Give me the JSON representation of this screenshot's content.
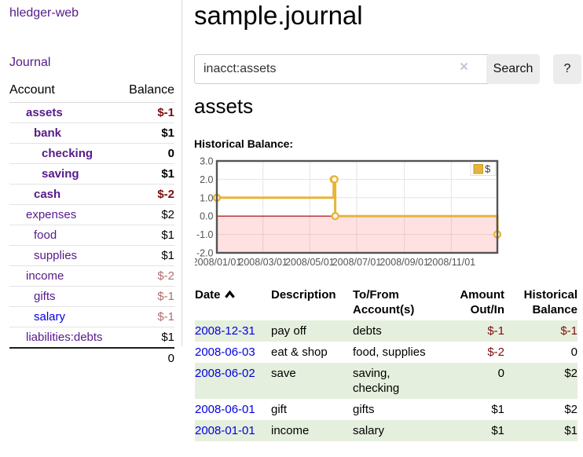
{
  "app_title": "hledger-web",
  "sidebar": {
    "journal_link": "Journal",
    "accounts_table": {
      "headers": {
        "account": "Account",
        "balance": "Balance"
      },
      "rows": [
        {
          "name": "assets",
          "indent": 1,
          "bold": true,
          "balance": "$-1",
          "balance_style": "negative"
        },
        {
          "name": "bank",
          "indent": 2,
          "bold": true,
          "balance": "$1",
          "balance_style": "positive"
        },
        {
          "name": "checking",
          "indent": 3,
          "bold": true,
          "balance": "0",
          "balance_style": "positive"
        },
        {
          "name": "saving",
          "indent": 3,
          "bold": true,
          "balance": "$1",
          "balance_style": "positive"
        },
        {
          "name": "cash",
          "indent": 2,
          "bold": true,
          "balance": "$-2",
          "balance_style": "negative"
        },
        {
          "name": "expenses",
          "indent": 1,
          "bold": false,
          "balance": "$2",
          "balance_style": "positive"
        },
        {
          "name": "food",
          "indent": 2,
          "bold": false,
          "balance": "$1",
          "balance_style": "positive"
        },
        {
          "name": "supplies",
          "indent": 2,
          "bold": false,
          "balance": "$1",
          "balance_style": "positive"
        },
        {
          "name": "income",
          "indent": 1,
          "bold": false,
          "balance": "$-2",
          "balance_style": "negative-dim"
        },
        {
          "name": "gifts",
          "indent": 2,
          "bold": false,
          "balance": "$-1",
          "balance_style": "negative-dim"
        },
        {
          "name": "salary",
          "indent": 2,
          "bold": false,
          "balance": "$-1",
          "balance_style": "negative-dim",
          "link_style": "unvisited"
        },
        {
          "name": "liabilities:debts",
          "indent": 1,
          "bold": false,
          "balance": "$1",
          "balance_style": "positive"
        }
      ],
      "total": "0"
    }
  },
  "main": {
    "title": "sample.journal",
    "search": {
      "value": "inacct:assets",
      "clear_label": "×",
      "search_button": "Search",
      "help_button": "?"
    },
    "account_heading": "assets",
    "section_label": "Historical Balance:"
  },
  "chart_data": {
    "type": "line",
    "style": "steps",
    "title": "Historical Balance:",
    "series": [
      {
        "name": "$",
        "color": "#e8b43a",
        "points": [
          [
            "2008-01-01",
            1
          ],
          [
            "2008-06-01",
            2
          ],
          [
            "2008-06-02",
            2
          ],
          [
            "2008-06-03",
            0
          ],
          [
            "2008-12-31",
            -1
          ]
        ]
      }
    ],
    "xlim": [
      "2008-01-01",
      "2008-12-31"
    ],
    "ylim": [
      -2,
      3
    ],
    "y_ticks": [
      {
        "value": 3,
        "label": "3.0"
      },
      {
        "value": 2,
        "label": "2.0"
      },
      {
        "value": 1,
        "label": "1.0"
      },
      {
        "value": 0,
        "label": "0.0"
      },
      {
        "value": -1,
        "label": "-1.0"
      },
      {
        "value": -2,
        "label": "-2.0"
      }
    ],
    "x_ticks": [
      {
        "date": "2008-01-01",
        "label": "2008/01/01"
      },
      {
        "date": "2008-03-01",
        "label": "2008/03/01"
      },
      {
        "date": "2008-05-01",
        "label": "2008/05/01"
      },
      {
        "date": "2008-07-01",
        "label": "2008/07/01"
      },
      {
        "date": "2008-09-01",
        "label": "2008/09/01"
      },
      {
        "date": "2008-11-01",
        "label": "2008/11/01"
      }
    ],
    "legend": {
      "label": "$",
      "position": "top-right"
    },
    "grid": true,
    "negative_region_shaded": true
  },
  "register": {
    "headers": {
      "date": "Date",
      "description": "Description",
      "accounts": "To/From Account(s)",
      "amount": "Amount Out/In",
      "balance": "Historical Balance"
    },
    "sort": "date-ascending",
    "rows": [
      {
        "date": "2008-12-31",
        "description": "pay off",
        "accounts": "debts",
        "amount": "$-1",
        "amount_negative": true,
        "balance": "$-1",
        "balance_negative": true
      },
      {
        "date": "2008-06-03",
        "description": "eat & shop",
        "accounts": "food, supplies",
        "amount": "$-2",
        "amount_negative": true,
        "balance": "0",
        "balance_negative": false
      },
      {
        "date": "2008-06-02",
        "description": "save",
        "accounts": "saving, checking",
        "amount": "0",
        "amount_negative": false,
        "balance": "$2",
        "balance_negative": false
      },
      {
        "date": "2008-06-01",
        "description": "gift",
        "accounts": "gifts",
        "amount": "$1",
        "amount_negative": false,
        "balance": "$2",
        "balance_negative": false
      },
      {
        "date": "2008-01-01",
        "description": "income",
        "accounts": "salary",
        "amount": "$1",
        "amount_negative": false,
        "balance": "$1",
        "balance_negative": false
      }
    ]
  },
  "colors": {
    "link_visited_purple": "#551a8b",
    "link_unvisited_blue": "#0000e0",
    "negative_amount": "#7f0c0c",
    "negative_amount_dimmed": "#b26d6d",
    "row_stripe_green": "#e5efdd",
    "series_gold": "#e8b43a",
    "negative_region_pink": "#fadcdc",
    "zero_line_red": "#aa0000",
    "axis_text_gray": "#545454",
    "button_gray": "#ececec"
  }
}
